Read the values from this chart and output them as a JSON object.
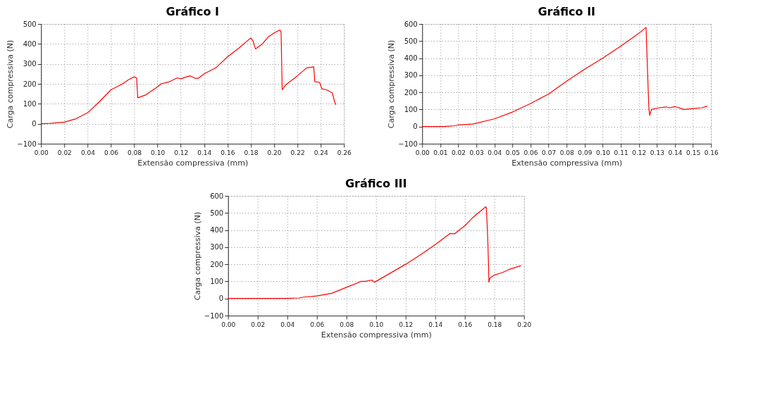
{
  "chart_data": [
    {
      "type": "line",
      "title": "Gráfico I",
      "xlabel": "Extensão compressiva (mm)",
      "ylabel": "Carga compressiva (N)",
      "grid": true,
      "line_style": "solid",
      "marker": "none",
      "xlim": [
        0,
        0.26
      ],
      "ylim": [
        -100,
        500
      ],
      "xticks": [
        {
          "value": 0,
          "label": "0.00"
        },
        0.02,
        0.04,
        0.06,
        0.08,
        {
          "value": 0.1,
          "label": "0.10"
        },
        0.12,
        0.14,
        0.16,
        0.18,
        {
          "value": 0.2,
          "label": "0.20"
        },
        0.22,
        0.24,
        0.26
      ],
      "yticks": [
        -100,
        0,
        100,
        200,
        300,
        400,
        500
      ],
      "x": [
        0,
        0.008,
        0.02,
        0.03,
        0.04,
        0.05,
        0.06,
        0.07,
        0.075,
        0.08,
        0.082,
        0.083,
        0.09,
        0.1,
        0.103,
        0.11,
        0.117,
        0.12,
        0.125,
        0.128,
        0.132,
        0.135,
        0.14,
        0.15,
        0.16,
        0.17,
        0.18,
        0.182,
        0.184,
        0.19,
        0.195,
        0.2,
        0.205,
        0.206,
        0.207,
        0.21,
        0.22,
        0.228,
        0.234,
        0.235,
        0.239,
        0.241,
        0.245,
        0.25,
        0.252,
        0.253
      ],
      "series": [
        {
          "color": "#ff0000",
          "values": [
            0,
            2,
            8,
            25,
            55,
            110,
            170,
            200,
            220,
            235,
            230,
            130,
            145,
            185,
            200,
            210,
            230,
            225,
            235,
            240,
            228,
            228,
            250,
            280,
            335,
            380,
            430,
            415,
            375,
            400,
            435,
            455,
            470,
            460,
            170,
            195,
            240,
            280,
            285,
            210,
            208,
            175,
            170,
            155,
            110,
            95
          ]
        }
      ]
    },
    {
      "type": "line",
      "title": "Gráfico II",
      "xlabel": "Extensão compressiva (mm)",
      "ylabel": "Carga compressiva (N)",
      "grid": true,
      "line_style": "solid",
      "marker": "none",
      "xlim": [
        0,
        0.16
      ],
      "ylim": [
        -100,
        600
      ],
      "xticks": [
        {
          "value": 0,
          "label": "0.00"
        },
        0.01,
        0.02,
        0.03,
        0.04,
        0.05,
        0.06,
        0.07,
        0.08,
        0.09,
        {
          "value": 0.1,
          "label": "0.10"
        },
        0.11,
        0.12,
        0.13,
        0.14,
        0.15,
        0.16
      ],
      "yticks": [
        -100,
        0,
        100,
        200,
        300,
        400,
        500,
        600
      ],
      "x": [
        0,
        0.012,
        0.018,
        0.02,
        0.028,
        0.03,
        0.04,
        0.05,
        0.06,
        0.07,
        0.08,
        0.09,
        0.1,
        0.11,
        0.12,
        0.124,
        0.1255,
        0.126,
        0.127,
        0.13,
        0.135,
        0.137,
        0.14,
        0.145,
        0.15,
        0.155,
        0.158
      ],
      "series": [
        {
          "color": "#ff0000",
          "values": [
            0,
            0,
            5,
            10,
            15,
            20,
            45,
            85,
            135,
            190,
            265,
            335,
            400,
            470,
            545,
            580,
            120,
            65,
            100,
            108,
            115,
            110,
            117,
            100,
            105,
            110,
            120
          ]
        }
      ]
    },
    {
      "type": "line",
      "title": "Gráfico III",
      "xlabel": "Extensão compressiva (mm)",
      "ylabel": "Carga compressiva (N)",
      "grid": true,
      "line_style": "solid",
      "marker": "none",
      "xlim": [
        0,
        0.2
      ],
      "ylim": [
        -100,
        600
      ],
      "xticks": [
        {
          "value": 0,
          "label": "0.00"
        },
        0.02,
        0.04,
        0.06,
        0.08,
        {
          "value": 0.1,
          "label": "0.10"
        },
        0.12,
        0.14,
        0.16,
        0.18,
        {
          "value": 0.2,
          "label": "0.20"
        }
      ],
      "yticks": [
        -100,
        0,
        100,
        200,
        300,
        400,
        500,
        600
      ],
      "x": [
        0,
        0.039,
        0.048,
        0.05,
        0.06,
        0.07,
        0.08,
        0.09,
        0.093,
        0.097,
        0.099,
        0.105,
        0.12,
        0.13,
        0.14,
        0.15,
        0.153,
        0.16,
        0.165,
        0.174,
        0.1745,
        0.175,
        0.1755,
        0.176,
        0.1763,
        0.177,
        0.18,
        0.185,
        0.19,
        0.198
      ],
      "series": [
        {
          "color": "#ff0000",
          "values": [
            0,
            0,
            3,
            7,
            15,
            30,
            65,
            100,
            100,
            108,
            95,
            125,
            200,
            255,
            315,
            380,
            378,
            425,
            470,
            535,
            535,
            450,
            350,
            210,
            95,
            120,
            137,
            150,
            170,
            192
          ]
        }
      ]
    }
  ]
}
